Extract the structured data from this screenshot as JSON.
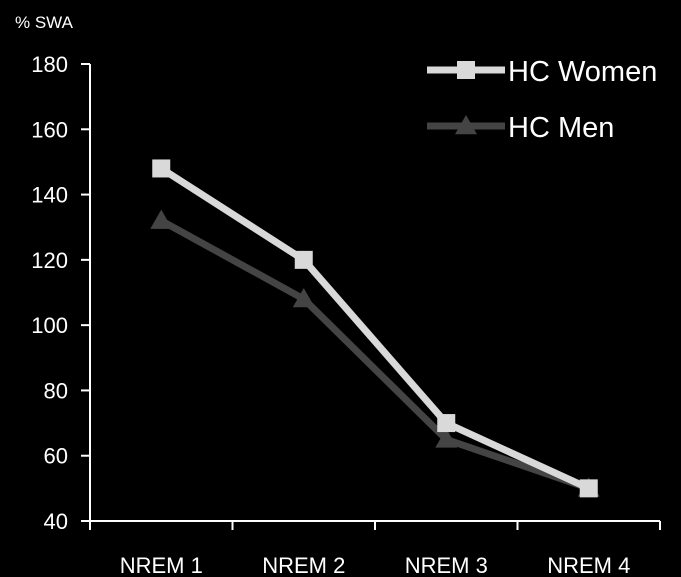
{
  "chart_data": {
    "type": "line",
    "title": "",
    "ylabel": "% SWA",
    "xlabel": "",
    "categories": [
      "NREM 1",
      "NREM 2",
      "NREM 3",
      "NREM 4"
    ],
    "ylim": [
      40,
      180
    ],
    "yticks": [
      40,
      60,
      80,
      100,
      120,
      140,
      160,
      180
    ],
    "grid": false,
    "legend_position": "top-right",
    "series": [
      {
        "name": "HC Women",
        "values": [
          148,
          120,
          70,
          50
        ],
        "color": "#d9d9d9",
        "marker": "square"
      },
      {
        "name": "HC Men",
        "values": [
          132,
          108,
          65,
          50
        ],
        "color": "#444444",
        "marker": "triangle"
      }
    ]
  }
}
